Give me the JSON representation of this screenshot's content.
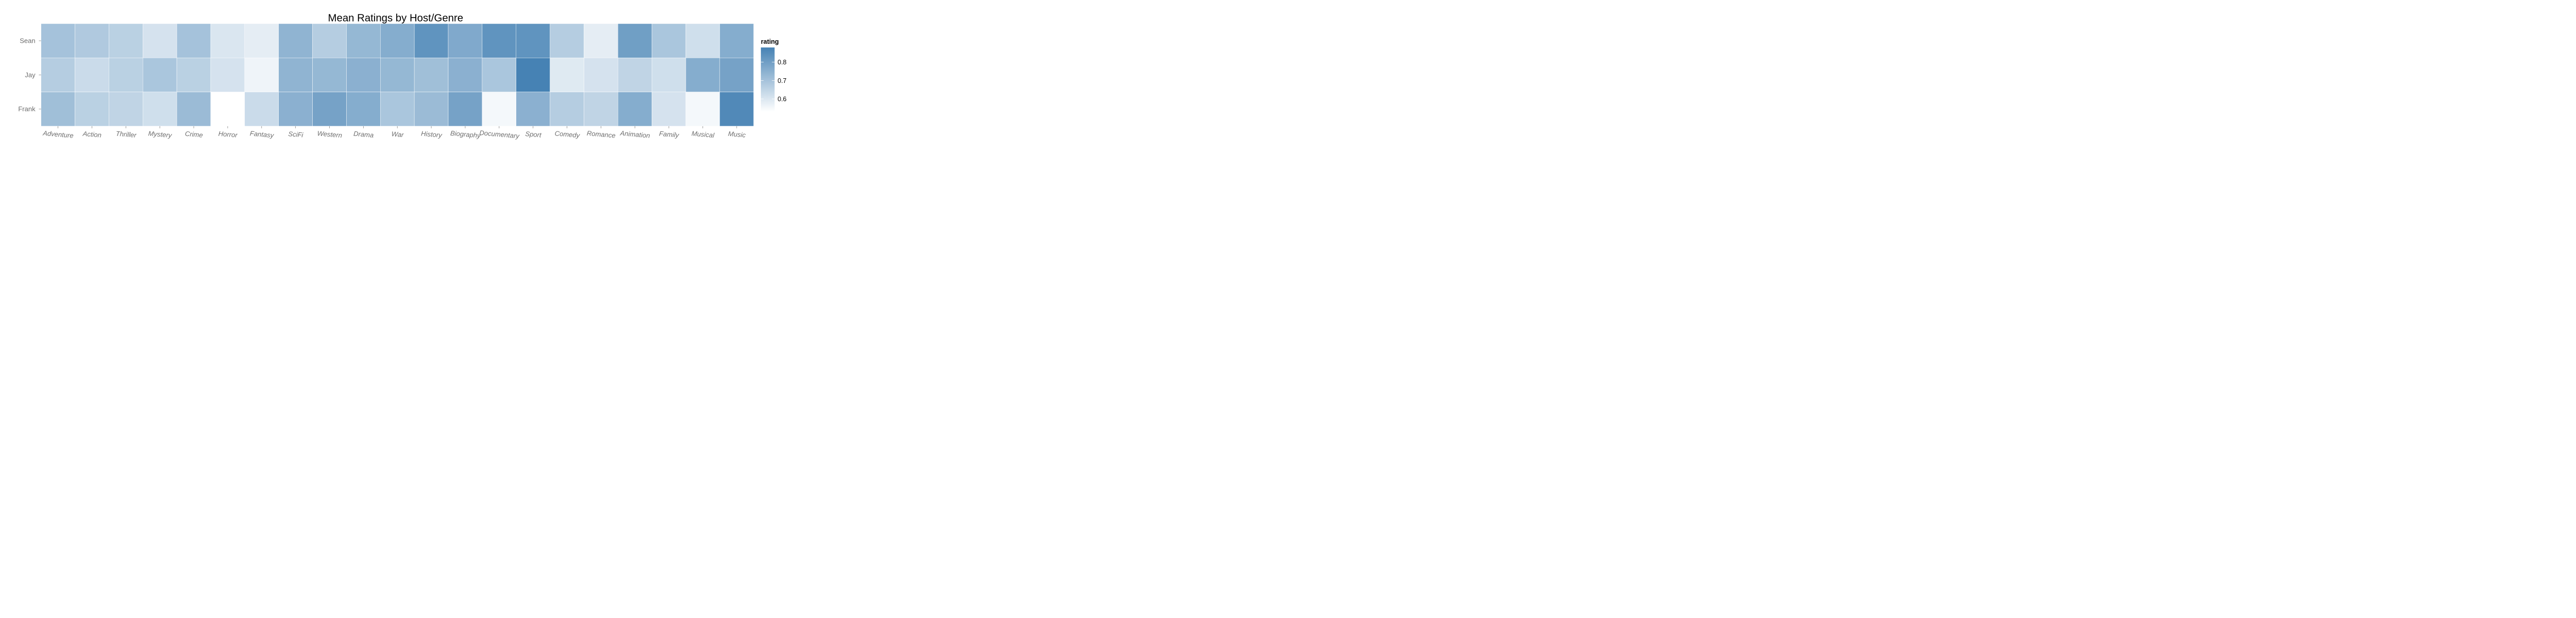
{
  "chart_data": {
    "type": "heatmap",
    "title": "Mean Ratings by Host/Genre",
    "xlabel": "",
    "ylabel": "",
    "x_categories": [
      "Adventure",
      "Action",
      "Thriller",
      "Mystery",
      "Crime",
      "Horror",
      "Fantasy",
      "SciFi",
      "Western",
      "Drama",
      "War",
      "History",
      "Biography",
      "Documentary",
      "Sport",
      "Comedy",
      "Romance",
      "Animation",
      "Family",
      "Musical",
      "Music"
    ],
    "y_categories": [
      "Sean",
      "Jay",
      "Frank"
    ],
    "values": [
      [
        0.7,
        0.68,
        0.66,
        0.61,
        0.7,
        0.6,
        0.58,
        0.74,
        0.67,
        0.73,
        0.76,
        0.83,
        0.77,
        0.83,
        0.83,
        0.67,
        0.58,
        0.8,
        0.69,
        0.62,
        0.76
      ],
      [
        0.67,
        0.63,
        0.66,
        0.69,
        0.66,
        0.61,
        0.56,
        0.74,
        0.73,
        0.75,
        0.73,
        0.71,
        0.75,
        0.69,
        0.9,
        0.59,
        0.61,
        0.65,
        0.62,
        0.76,
        0.79
      ],
      [
        0.71,
        0.66,
        0.65,
        0.62,
        0.72,
        null,
        0.63,
        0.75,
        0.79,
        0.76,
        0.69,
        0.72,
        0.79,
        0.55,
        0.75,
        0.67,
        0.65,
        0.76,
        0.61,
        0.55,
        0.86
      ]
    ],
    "value_range": [
      0.53,
      0.88
    ],
    "colors": {
      "low": "#ffffff",
      "high": "#4682b4",
      "missing": "#ffffff"
    },
    "legend": {
      "title": "rating",
      "ticks": [
        0.6,
        0.7,
        0.8
      ],
      "tick_labels": [
        "0.6",
        "0.7",
        "0.8"
      ],
      "position": "right"
    }
  }
}
